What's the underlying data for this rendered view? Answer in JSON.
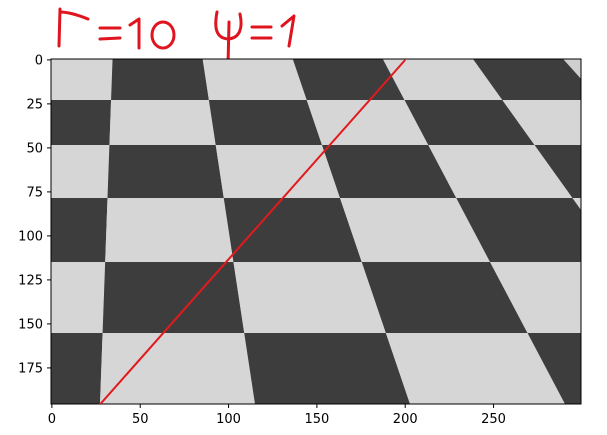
{
  "chart_data": {
    "type": "image-with-line-overlay",
    "image": {
      "width": 300,
      "height": 196,
      "content": "grayscale photograph of a checkerboard floor in perspective",
      "colormap": "gray"
    },
    "x_ticks": [
      0,
      50,
      100,
      150,
      200,
      250
    ],
    "y_ticks": [
      0,
      25,
      50,
      75,
      100,
      125,
      150,
      175
    ],
    "xlim": [
      -0.5,
      299.5
    ],
    "ylim": [
      195.5,
      -0.5
    ],
    "y_inverted": true,
    "line": {
      "color": "#e31a1c",
      "points": [
        [
          200,
          0
        ],
        [
          27,
          196
        ]
      ]
    },
    "handwritten_annotation": {
      "text": "r = 10   φ = 1",
      "color": "#e0141e"
    }
  }
}
